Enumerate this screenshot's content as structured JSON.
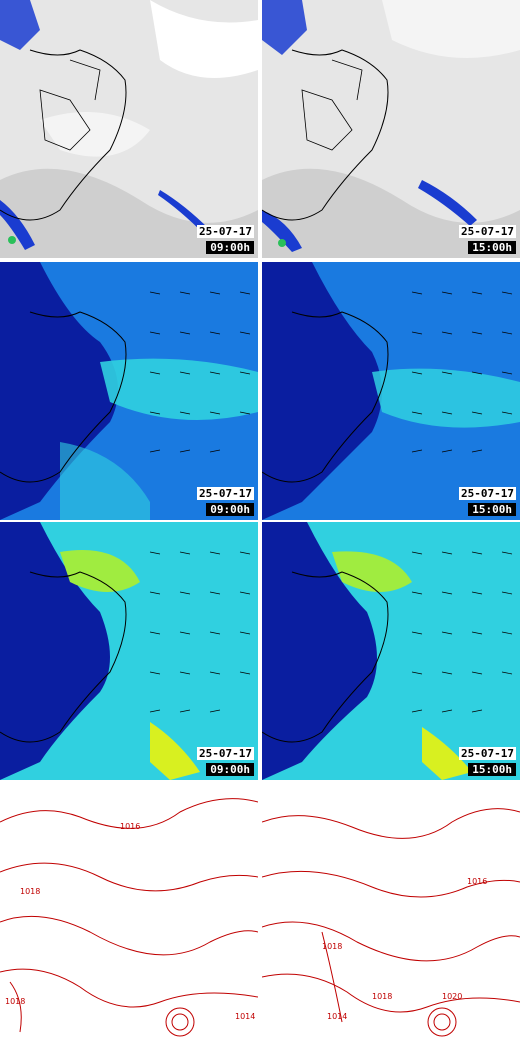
{
  "panels": [
    {
      "type": "satellite",
      "date": "25-07-17",
      "time": "09:00h"
    },
    {
      "type": "satellite",
      "date": "25-07-17",
      "time": "15:00h"
    },
    {
      "type": "wind_low",
      "date": "25-07-17",
      "time": "09:00h"
    },
    {
      "type": "wind_low",
      "date": "25-07-17",
      "time": "15:00h"
    },
    {
      "type": "wind_high",
      "date": "25-07-17",
      "time": "09:00h"
    },
    {
      "type": "wind_high",
      "date": "25-07-17",
      "time": "15:00h"
    },
    {
      "type": "isobars",
      "date": "",
      "time": ""
    },
    {
      "type": "isobars",
      "date": "",
      "time": ""
    }
  ],
  "isobar_labels": [
    "1016",
    "1018",
    "1018",
    "1014",
    "1016",
    "1018",
    "1018",
    "1020",
    "1014"
  ],
  "colors": {
    "coast": "#000000",
    "isobar": "#c00000",
    "wind_dark": "#0a1ea0",
    "wind_mid": "#1a7ae0",
    "wind_light": "#30d0e0",
    "wind_peak": "#d8f020",
    "sat_cloud": "#d8d8d8",
    "sat_cold": "#1a3cd0"
  }
}
